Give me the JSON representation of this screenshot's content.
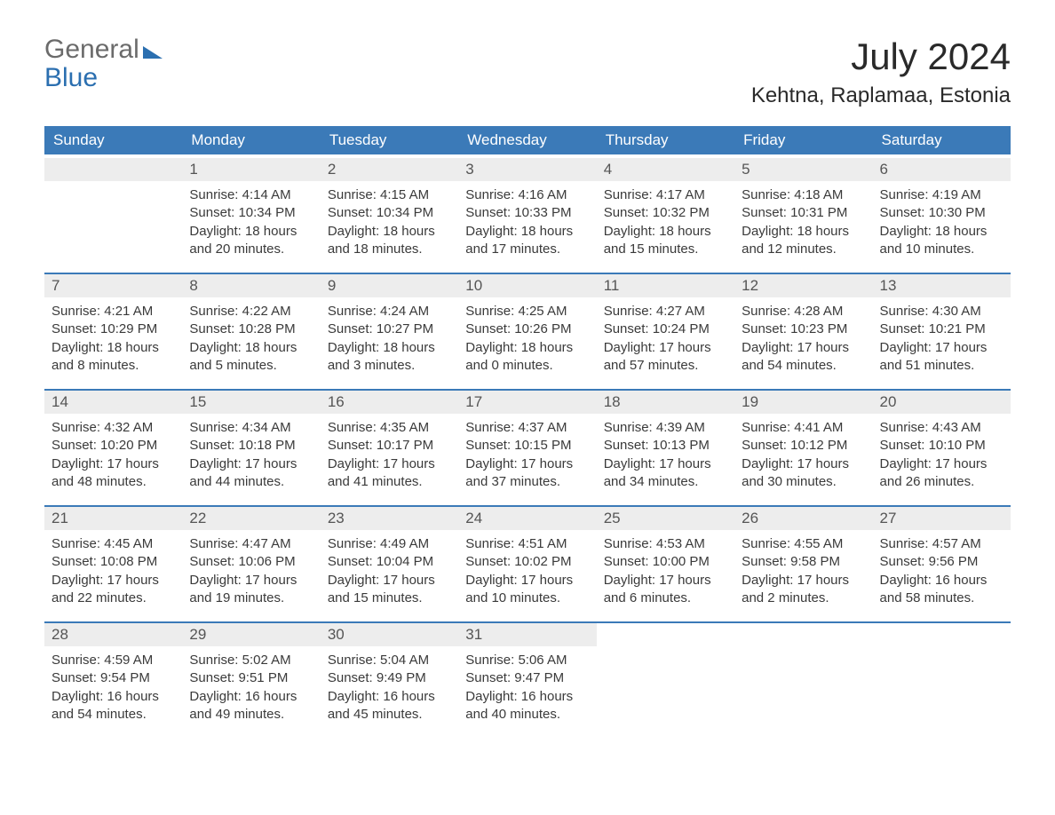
{
  "logo": {
    "word1": "General",
    "word2": "Blue"
  },
  "title": "July 2024",
  "location": "Kehtna, Raplamaa, Estonia",
  "colors": {
    "header_bg": "#3b7ab8",
    "header_text": "#ffffff",
    "daynum_bg": "#ededed",
    "daynum_text": "#555555",
    "body_text": "#3a3a3a",
    "logo_gray": "#6b6b6b",
    "logo_blue": "#2b6fb0",
    "row_border": "#3b7ab8",
    "page_bg": "#ffffff"
  },
  "fonts": {
    "title_size": 42,
    "location_size": 24,
    "dayheader_size": 17,
    "daynum_size": 17,
    "body_size": 15
  },
  "day_names": [
    "Sunday",
    "Monday",
    "Tuesday",
    "Wednesday",
    "Thursday",
    "Friday",
    "Saturday"
  ],
  "weeks": [
    [
      {
        "n": "",
        "sunrise": "",
        "sunset": "",
        "dl1": "",
        "dl2": ""
      },
      {
        "n": "1",
        "sunrise": "Sunrise: 4:14 AM",
        "sunset": "Sunset: 10:34 PM",
        "dl1": "Daylight: 18 hours",
        "dl2": "and 20 minutes."
      },
      {
        "n": "2",
        "sunrise": "Sunrise: 4:15 AM",
        "sunset": "Sunset: 10:34 PM",
        "dl1": "Daylight: 18 hours",
        "dl2": "and 18 minutes."
      },
      {
        "n": "3",
        "sunrise": "Sunrise: 4:16 AM",
        "sunset": "Sunset: 10:33 PM",
        "dl1": "Daylight: 18 hours",
        "dl2": "and 17 minutes."
      },
      {
        "n": "4",
        "sunrise": "Sunrise: 4:17 AM",
        "sunset": "Sunset: 10:32 PM",
        "dl1": "Daylight: 18 hours",
        "dl2": "and 15 minutes."
      },
      {
        "n": "5",
        "sunrise": "Sunrise: 4:18 AM",
        "sunset": "Sunset: 10:31 PM",
        "dl1": "Daylight: 18 hours",
        "dl2": "and 12 minutes."
      },
      {
        "n": "6",
        "sunrise": "Sunrise: 4:19 AM",
        "sunset": "Sunset: 10:30 PM",
        "dl1": "Daylight: 18 hours",
        "dl2": "and 10 minutes."
      }
    ],
    [
      {
        "n": "7",
        "sunrise": "Sunrise: 4:21 AM",
        "sunset": "Sunset: 10:29 PM",
        "dl1": "Daylight: 18 hours",
        "dl2": "and 8 minutes."
      },
      {
        "n": "8",
        "sunrise": "Sunrise: 4:22 AM",
        "sunset": "Sunset: 10:28 PM",
        "dl1": "Daylight: 18 hours",
        "dl2": "and 5 minutes."
      },
      {
        "n": "9",
        "sunrise": "Sunrise: 4:24 AM",
        "sunset": "Sunset: 10:27 PM",
        "dl1": "Daylight: 18 hours",
        "dl2": "and 3 minutes."
      },
      {
        "n": "10",
        "sunrise": "Sunrise: 4:25 AM",
        "sunset": "Sunset: 10:26 PM",
        "dl1": "Daylight: 18 hours",
        "dl2": "and 0 minutes."
      },
      {
        "n": "11",
        "sunrise": "Sunrise: 4:27 AM",
        "sunset": "Sunset: 10:24 PM",
        "dl1": "Daylight: 17 hours",
        "dl2": "and 57 minutes."
      },
      {
        "n": "12",
        "sunrise": "Sunrise: 4:28 AM",
        "sunset": "Sunset: 10:23 PM",
        "dl1": "Daylight: 17 hours",
        "dl2": "and 54 minutes."
      },
      {
        "n": "13",
        "sunrise": "Sunrise: 4:30 AM",
        "sunset": "Sunset: 10:21 PM",
        "dl1": "Daylight: 17 hours",
        "dl2": "and 51 minutes."
      }
    ],
    [
      {
        "n": "14",
        "sunrise": "Sunrise: 4:32 AM",
        "sunset": "Sunset: 10:20 PM",
        "dl1": "Daylight: 17 hours",
        "dl2": "and 48 minutes."
      },
      {
        "n": "15",
        "sunrise": "Sunrise: 4:34 AM",
        "sunset": "Sunset: 10:18 PM",
        "dl1": "Daylight: 17 hours",
        "dl2": "and 44 minutes."
      },
      {
        "n": "16",
        "sunrise": "Sunrise: 4:35 AM",
        "sunset": "Sunset: 10:17 PM",
        "dl1": "Daylight: 17 hours",
        "dl2": "and 41 minutes."
      },
      {
        "n": "17",
        "sunrise": "Sunrise: 4:37 AM",
        "sunset": "Sunset: 10:15 PM",
        "dl1": "Daylight: 17 hours",
        "dl2": "and 37 minutes."
      },
      {
        "n": "18",
        "sunrise": "Sunrise: 4:39 AM",
        "sunset": "Sunset: 10:13 PM",
        "dl1": "Daylight: 17 hours",
        "dl2": "and 34 minutes."
      },
      {
        "n": "19",
        "sunrise": "Sunrise: 4:41 AM",
        "sunset": "Sunset: 10:12 PM",
        "dl1": "Daylight: 17 hours",
        "dl2": "and 30 minutes."
      },
      {
        "n": "20",
        "sunrise": "Sunrise: 4:43 AM",
        "sunset": "Sunset: 10:10 PM",
        "dl1": "Daylight: 17 hours",
        "dl2": "and 26 minutes."
      }
    ],
    [
      {
        "n": "21",
        "sunrise": "Sunrise: 4:45 AM",
        "sunset": "Sunset: 10:08 PM",
        "dl1": "Daylight: 17 hours",
        "dl2": "and 22 minutes."
      },
      {
        "n": "22",
        "sunrise": "Sunrise: 4:47 AM",
        "sunset": "Sunset: 10:06 PM",
        "dl1": "Daylight: 17 hours",
        "dl2": "and 19 minutes."
      },
      {
        "n": "23",
        "sunrise": "Sunrise: 4:49 AM",
        "sunset": "Sunset: 10:04 PM",
        "dl1": "Daylight: 17 hours",
        "dl2": "and 15 minutes."
      },
      {
        "n": "24",
        "sunrise": "Sunrise: 4:51 AM",
        "sunset": "Sunset: 10:02 PM",
        "dl1": "Daylight: 17 hours",
        "dl2": "and 10 minutes."
      },
      {
        "n": "25",
        "sunrise": "Sunrise: 4:53 AM",
        "sunset": "Sunset: 10:00 PM",
        "dl1": "Daylight: 17 hours",
        "dl2": "and 6 minutes."
      },
      {
        "n": "26",
        "sunrise": "Sunrise: 4:55 AM",
        "sunset": "Sunset: 9:58 PM",
        "dl1": "Daylight: 17 hours",
        "dl2": "and 2 minutes."
      },
      {
        "n": "27",
        "sunrise": "Sunrise: 4:57 AM",
        "sunset": "Sunset: 9:56 PM",
        "dl1": "Daylight: 16 hours",
        "dl2": "and 58 minutes."
      }
    ],
    [
      {
        "n": "28",
        "sunrise": "Sunrise: 4:59 AM",
        "sunset": "Sunset: 9:54 PM",
        "dl1": "Daylight: 16 hours",
        "dl2": "and 54 minutes."
      },
      {
        "n": "29",
        "sunrise": "Sunrise: 5:02 AM",
        "sunset": "Sunset: 9:51 PM",
        "dl1": "Daylight: 16 hours",
        "dl2": "and 49 minutes."
      },
      {
        "n": "30",
        "sunrise": "Sunrise: 5:04 AM",
        "sunset": "Sunset: 9:49 PM",
        "dl1": "Daylight: 16 hours",
        "dl2": "and 45 minutes."
      },
      {
        "n": "31",
        "sunrise": "Sunrise: 5:06 AM",
        "sunset": "Sunset: 9:47 PM",
        "dl1": "Daylight: 16 hours",
        "dl2": "and 40 minutes."
      },
      {
        "n": "",
        "sunrise": "",
        "sunset": "",
        "dl1": "",
        "dl2": ""
      },
      {
        "n": "",
        "sunrise": "",
        "sunset": "",
        "dl1": "",
        "dl2": ""
      },
      {
        "n": "",
        "sunrise": "",
        "sunset": "",
        "dl1": "",
        "dl2": ""
      }
    ]
  ]
}
